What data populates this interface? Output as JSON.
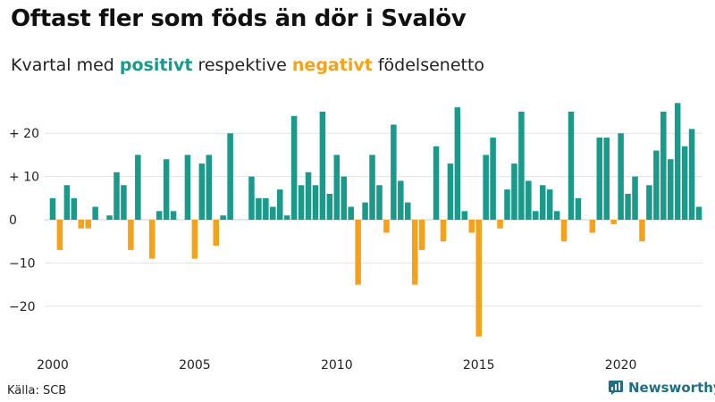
{
  "header": {
    "title": "Oftast fler som föds än dör i Svalöv",
    "subtitle_prefix": "Kvartal med ",
    "subtitle_positive": "positivt",
    "subtitle_middle": " respektive ",
    "subtitle_negative": "negativt",
    "subtitle_suffix": " födelsenetto"
  },
  "footer": {
    "source": "Källa: SCB",
    "brand": "Newsworthy"
  },
  "colors": {
    "positive": "#1a9a8b",
    "negative": "#f5a21b",
    "brand": "#1e6f86"
  },
  "chart_data": {
    "type": "bar",
    "title": "Oftast fler som föds än dör i Svalöv",
    "subtitle": "Kvartal med positivt respektive negativt födelsenetto",
    "xlabel": "",
    "ylabel": "",
    "start_year": 2000,
    "ylim": [
      -28,
      28
    ],
    "y_ticks": [
      {
        "value": 20,
        "label": "+ 20"
      },
      {
        "value": 10,
        "label": "+ 10"
      },
      {
        "value": 0,
        "label": "0"
      },
      {
        "value": -10,
        "label": "−10"
      },
      {
        "value": -20,
        "label": "−20"
      }
    ],
    "x_ticks": [
      {
        "year": 2000,
        "label": "2000"
      },
      {
        "year": 2005,
        "label": "2005"
      },
      {
        "year": 2010,
        "label": "2010"
      },
      {
        "year": 2015,
        "label": "2015"
      },
      {
        "year": 2020,
        "label": "2020"
      }
    ],
    "grid": true,
    "values": [
      5,
      -7,
      8,
      5,
      -2,
      -2,
      3,
      0,
      1,
      11,
      8,
      -7,
      15,
      0,
      -9,
      2,
      14,
      2,
      0,
      15,
      -9,
      13,
      15,
      -6,
      1,
      20,
      0,
      0,
      10,
      5,
      5,
      3,
      7,
      1,
      24,
      8,
      11,
      8,
      25,
      6,
      15,
      10,
      3,
      -15,
      4,
      15,
      8,
      -3,
      22,
      9,
      4,
      -15,
      -7,
      0,
      17,
      -5,
      13,
      26,
      2,
      -3,
      -27,
      15,
      19,
      -2,
      7,
      13,
      25,
      9,
      2,
      8,
      7,
      2,
      -5,
      25,
      5,
      0,
      -3,
      19,
      19,
      -1,
      20,
      6,
      10,
      -5,
      8,
      16,
      25,
      14,
      27,
      17,
      21,
      3
    ]
  }
}
